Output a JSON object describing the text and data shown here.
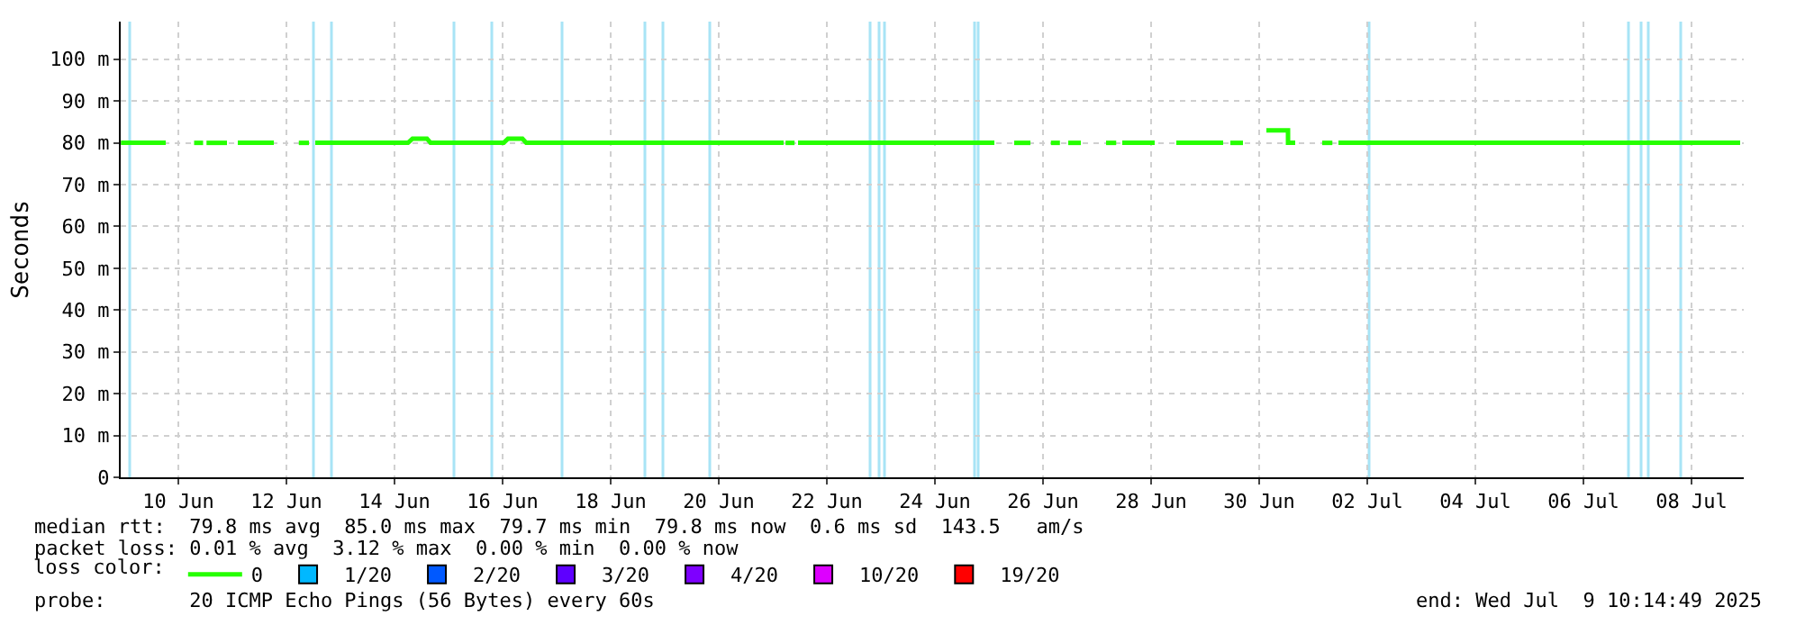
{
  "chart_data": {
    "type": "line",
    "ylabel": "Seconds",
    "xlim": [
      "2025-06-08T22:24",
      "2025-07-08T23:12"
    ],
    "xticks": [
      {
        "value": "2025-06-10",
        "label": "10 Jun"
      },
      {
        "value": "2025-06-12",
        "label": "12 Jun"
      },
      {
        "value": "2025-06-14",
        "label": "14 Jun"
      },
      {
        "value": "2025-06-16",
        "label": "16 Jun"
      },
      {
        "value": "2025-06-18",
        "label": "18 Jun"
      },
      {
        "value": "2025-06-20",
        "label": "20 Jun"
      },
      {
        "value": "2025-06-22",
        "label": "22 Jun"
      },
      {
        "value": "2025-06-24",
        "label": "24 Jun"
      },
      {
        "value": "2025-06-26",
        "label": "26 Jun"
      },
      {
        "value": "2025-06-28",
        "label": "28 Jun"
      },
      {
        "value": "2025-06-30",
        "label": "30 Jun"
      },
      {
        "value": "2025-07-02",
        "label": "02 Jul"
      },
      {
        "value": "2025-07-04",
        "label": "04 Jul"
      },
      {
        "value": "2025-07-06",
        "label": "06 Jul"
      },
      {
        "value": "2025-07-08",
        "label": "08 Jul"
      }
    ],
    "ylim": [
      0,
      109
    ],
    "yticks": [
      0,
      {
        "value": 10,
        "label": "10 m"
      },
      {
        "value": 20,
        "label": "20 m"
      },
      {
        "value": 30,
        "label": "30 m"
      },
      {
        "value": 40,
        "label": "40 m"
      },
      {
        "value": 50,
        "label": "50 m"
      },
      {
        "value": 60,
        "label": "60 m"
      },
      {
        "value": 70,
        "label": "70 m"
      },
      {
        "value": 80,
        "label": "80 m"
      },
      {
        "value": 90,
        "label": "90 m"
      },
      {
        "value": 100,
        "label": "100 m"
      }
    ],
    "grid": true,
    "legend": "bottom",
    "legend_title": "loss color:",
    "line_style": "solid",
    "series": [
      {
        "name": "0",
        "color": "#26ff00",
        "x": [
          "2025-06-08T22:30",
          "2025-06-09T18:24",
          "2025-06-10T04:00",
          "2025-06-10T07:00",
          "2025-06-10T11:00",
          "2025-06-10T11:30",
          "2025-06-10T12:30",
          "2025-06-10T21:36",
          "2025-06-11T00:00",
          "2025-06-11T02:24",
          "2025-06-11T18:24",
          "2025-06-12T00:00",
          "2025-06-12T05:30",
          "2025-06-12T10:00",
          "2025-06-12T10:40",
          "2025-06-12T12:48",
          "2025-06-14T06:00",
          "2025-06-14T08:00",
          "2025-06-14T14:24",
          "2025-06-14T16:00",
          "2025-06-16T00:30",
          "2025-06-16T02:24",
          "2025-06-16T08:48",
          "2025-06-16T10:30",
          "2025-06-21T04:48",
          "2025-06-21T05:10",
          "2025-06-21T05:40",
          "2025-06-21T09:40",
          "2025-06-21T10:20",
          "2025-06-21T11:12",
          "2025-06-25T02:24",
          "2025-06-25T06:00",
          "2025-06-25T11:12",
          "2025-06-25T18:24",
          "2025-06-26T00:00",
          "2025-06-26T03:30",
          "2025-06-26T07:30",
          "2025-06-26T08:00",
          "2025-06-26T11:12",
          "2025-06-26T16:48",
          "2025-06-27T00:00",
          "2025-06-27T04:00",
          "2025-06-27T08:30",
          "2025-06-27T09:00",
          "2025-06-27T11:12",
          "2025-06-28T01:36",
          "2025-06-28T06:00",
          "2025-06-28T11:12",
          "2025-06-29T08:00",
          "2025-06-29T09:30",
          "2025-06-29T11:12",
          "2025-06-29T16:48",
          "2025-06-29T22:00",
          "2025-06-30T03:12",
          "2025-06-30T12:48",
          "2025-06-30T12:49",
          "2025-06-30T16:00",
          "2025-06-30T22:00",
          "2025-07-01T04:00",
          "2025-07-01T08:30",
          "2025-07-01T09:00",
          "2025-07-01T11:12",
          "2025-07-08T21:36"
        ],
        "values": [
          80,
          80,
          null,
          80,
          80,
          null,
          80,
          80,
          null,
          80,
          80,
          null,
          80,
          80,
          null,
          80,
          80,
          81,
          81,
          80,
          80,
          81,
          81,
          80,
          80,
          null,
          80,
          80,
          null,
          80,
          80,
          null,
          80,
          80,
          null,
          80,
          80,
          null,
          80,
          80,
          null,
          80,
          80,
          null,
          80,
          80,
          null,
          80,
          80,
          null,
          80,
          80,
          null,
          83,
          83,
          80,
          80,
          null,
          80,
          80,
          null,
          80,
          80
        ]
      },
      {
        "name": "1/20",
        "color": "#00b8ff",
        "type": "scatter"
      },
      {
        "name": "2/20",
        "color": "#0059ff",
        "type": "scatter"
      },
      {
        "name": "3/20",
        "color": "#5e00ff",
        "type": "scatter"
      },
      {
        "name": "4/20",
        "color": "#7e00ff",
        "type": "scatter"
      },
      {
        "name": "10/20",
        "color": "#dd00ff",
        "type": "scatter"
      },
      {
        "name": "19/20",
        "color": "#ff0000",
        "type": "scatter"
      }
    ],
    "ref_lines": [
      {
        "axis": "x",
        "value": "2025-06-09T02:24",
        "color": "#a8e4f6"
      },
      {
        "axis": "x",
        "value": "2025-06-12T12:00",
        "color": "#a8e4f6"
      },
      {
        "axis": "x",
        "value": "2025-06-12T20:00",
        "color": "#a8e4f6"
      },
      {
        "axis": "x",
        "value": "2025-06-15T02:24",
        "color": "#a8e4f6"
      },
      {
        "axis": "x",
        "value": "2025-06-15T19:12",
        "color": "#a8e4f6"
      },
      {
        "axis": "x",
        "value": "2025-06-17T02:24",
        "color": "#a8e4f6"
      },
      {
        "axis": "x",
        "value": "2025-06-18T15:12",
        "color": "#a8e4f6"
      },
      {
        "axis": "x",
        "value": "2025-06-18T23:12",
        "color": "#a8e4f6"
      },
      {
        "axis": "x",
        "value": "2025-06-19T20:00",
        "color": "#a8e4f6"
      },
      {
        "axis": "x",
        "value": "2025-06-22T19:12",
        "color": "#a8e4f6"
      },
      {
        "axis": "x",
        "value": "2025-06-22T23:12",
        "color": "#a8e4f6"
      },
      {
        "axis": "x",
        "value": "2025-06-23T01:36",
        "color": "#a8e4f6"
      },
      {
        "axis": "x",
        "value": "2025-06-24T17:36",
        "color": "#a8e4f6"
      },
      {
        "axis": "x",
        "value": "2025-06-24T19:12",
        "color": "#a8e4f6"
      },
      {
        "axis": "x",
        "value": "2025-07-02T00:48",
        "color": "#a8e4f6"
      },
      {
        "axis": "x",
        "value": "2025-07-06T20:00",
        "color": "#a8e4f6"
      },
      {
        "axis": "x",
        "value": "2025-07-07T01:36",
        "color": "#a8e4f6"
      },
      {
        "axis": "x",
        "value": "2025-07-07T04:48",
        "color": "#a8e4f6"
      },
      {
        "axis": "x",
        "value": "2025-07-07T19:12",
        "color": "#a8e4f6"
      }
    ],
    "annotations": [
      "median rtt:  79.8 ms avg  85.0 ms max  79.7 ms min  79.8 ms now  0.6 ms sd  143.5   am/s",
      "packet loss: 0.01 % avg  3.12 % max  0.00 % min  0.00 % now",
      "probe:       20 ICMP Echo Pings (56 Bytes) every 60s",
      "end: Wed Jul  9 10:14:49 2025"
    ]
  }
}
